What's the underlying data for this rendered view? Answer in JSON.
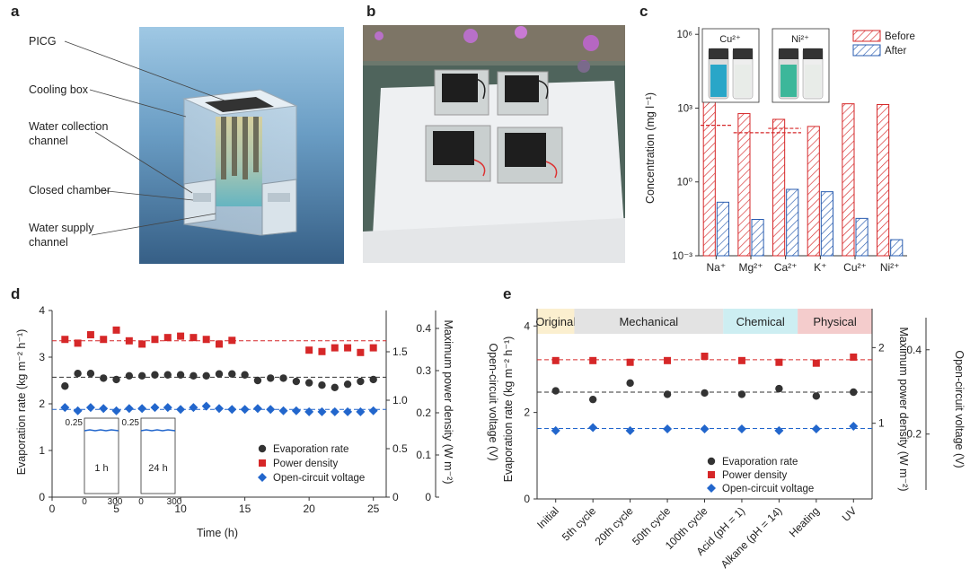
{
  "panel_labels": {
    "a": "a",
    "b": "b",
    "c": "c",
    "d": "d",
    "e": "e"
  },
  "panel_a": {
    "labels": [
      "PICG",
      "Cooling box",
      "Water collection channel",
      "Closed chamber",
      "Water supply channel"
    ],
    "label_lines": [
      [
        "PICG"
      ],
      [
        "Cooling box"
      ],
      [
        "Water collection",
        "channel"
      ],
      [
        "Closed chamber"
      ],
      [
        "Water supply",
        "channel"
      ]
    ]
  },
  "panel_b": {
    "description_icon": "photo-of-four-devices-on-foam"
  },
  "chart_data": [
    {
      "id": "c",
      "type": "bar",
      "scale": "log",
      "categories": [
        "Na⁺",
        "Mg²⁺",
        "Ca²⁺",
        "K⁺",
        "Cu²⁺",
        "Ni²⁺"
      ],
      "series": [
        {
          "name": "Before",
          "values": [
            3000,
            600,
            350,
            180,
            1500,
            1400
          ],
          "color": "#d62728"
        },
        {
          "name": "After",
          "values": [
            0.15,
            0.03,
            0.5,
            0.4,
            0.033,
            0.0045
          ],
          "color": "#2a5db0"
        }
      ],
      "limits": [
        {
          "value": 200,
          "from": 0,
          "to": 0
        },
        {
          "value": 100,
          "from": 1,
          "to": 2
        },
        {
          "value": 150,
          "from": 2,
          "to": 2
        }
      ],
      "ylabel": "Concentration (mg l⁻¹)",
      "yticks": [
        {
          "exp": -3,
          "label": "10⁻³"
        },
        {
          "exp": 0,
          "label": "10⁰"
        },
        {
          "exp": 3,
          "label": "10³"
        },
        {
          "exp": 6,
          "label": "10⁶"
        }
      ],
      "ylim_exp": [
        -3,
        6.3
      ],
      "legend": [
        "Before",
        "After"
      ],
      "insets": [
        {
          "label": "Cu²⁺",
          "color": "#29a6c8"
        },
        {
          "label": "Ni²⁺",
          "color": "#3cb79a"
        }
      ]
    },
    {
      "id": "d",
      "type": "scatter",
      "xlabel": "Time (h)",
      "ylabel": "Evaporation rate (kg m⁻² h⁻¹)",
      "ylabel2": "Maximum power density (W m⁻²)",
      "ylabel3": "Open-circuit voltage (V)",
      "xlim": [
        0,
        26
      ],
      "ylim": [
        0,
        4
      ],
      "xticks": [
        0,
        5,
        10,
        15,
        20,
        25
      ],
      "yticks": [
        0,
        1,
        2,
        3,
        4
      ],
      "y2ticks": [
        "0",
        "0.5",
        "1.0",
        "1.5"
      ],
      "y3ticks": [
        "0",
        "0.1",
        "0.2",
        "0.3",
        "0.4"
      ],
      "series": [
        {
          "name": "Evaporation rate",
          "color": "#333333",
          "marker": "circle",
          "x": [
            1,
            2,
            3,
            4,
            5,
            6,
            7,
            8,
            9,
            10,
            11,
            12,
            13,
            14,
            15,
            16,
            17,
            18,
            19,
            20,
            21,
            22,
            23,
            24,
            25
          ],
          "y": [
            2.38,
            2.65,
            2.65,
            2.55,
            2.52,
            2.6,
            2.6,
            2.62,
            2.62,
            2.62,
            2.6,
            2.6,
            2.64,
            2.64,
            2.62,
            2.5,
            2.55,
            2.55,
            2.48,
            2.45,
            2.4,
            2.35,
            2.42,
            2.48,
            2.52
          ]
        },
        {
          "name": "Power density",
          "color": "#d62728",
          "marker": "square",
          "x": [
            1,
            2,
            3,
            4,
            5,
            6,
            7,
            8,
            9,
            10,
            11,
            12,
            13,
            14,
            20,
            21,
            22,
            23,
            24,
            25
          ],
          "y": [
            3.38,
            3.3,
            3.48,
            3.38,
            3.58,
            3.35,
            3.28,
            3.38,
            3.42,
            3.45,
            3.42,
            3.38,
            3.28,
            3.36,
            3.15,
            3.12,
            3.2,
            3.2,
            3.1,
            3.2
          ]
        },
        {
          "name": "Open-circuit voltage",
          "color": "#2266cc",
          "marker": "diamond",
          "x": [
            1,
            2,
            3,
            4,
            5,
            6,
            7,
            8,
            9,
            10,
            11,
            12,
            13,
            14,
            15,
            16,
            17,
            18,
            19,
            20,
            21,
            22,
            23,
            24,
            25
          ],
          "y": [
            1.92,
            1.85,
            1.92,
            1.9,
            1.85,
            1.9,
            1.9,
            1.92,
            1.92,
            1.88,
            1.92,
            1.95,
            1.9,
            1.88,
            1.88,
            1.9,
            1.88,
            1.85,
            1.85,
            1.83,
            1.83,
            1.83,
            1.83,
            1.83,
            1.85
          ]
        }
      ],
      "reference_lines": [
        {
          "color": "#d62728",
          "y": 3.35
        },
        {
          "color": "#333333",
          "y": 2.57
        },
        {
          "color": "#2266cc",
          "y": 1.88
        }
      ],
      "insets": [
        {
          "label": "1 h",
          "ytick": "0.25",
          "xticks": [
            "0",
            "300"
          ]
        },
        {
          "label": "24 h",
          "ytick": "0.25",
          "xticks": [
            "0",
            "300"
          ]
        }
      ],
      "legend": [
        "Evaporation rate",
        "Power density",
        "Open-circuit voltage"
      ]
    },
    {
      "id": "e",
      "type": "scatter",
      "ylabel": "Evaporation rate (kg m⁻² h⁻¹)",
      "ylabel2": "Maximum power density (W m⁻²)",
      "ylabel3": "Open-circuit voltage (V)",
      "categories": [
        "Initial",
        "5th cycle",
        "20th cycle",
        "50th cycle",
        "100th cycle",
        "Acid (pH = 1)",
        "Alkane (pH = 14)",
        "Heating",
        "UV"
      ],
      "ylim": [
        0,
        4.4
      ],
      "yticks": [
        0,
        2,
        4
      ],
      "y2ticks": [
        "1",
        "2"
      ],
      "y3ticks": [
        "0.2",
        "0.4"
      ],
      "groups": [
        {
          "name": "Original",
          "from": 0,
          "to": 0,
          "color": "#fbefcf"
        },
        {
          "name": "Mechanical",
          "from": 1,
          "to": 4,
          "color": "#e3e3e3"
        },
        {
          "name": "Chemical",
          "from": 5,
          "to": 6,
          "color": "#cdeef2"
        },
        {
          "name": "Physical",
          "from": 7,
          "to": 8,
          "color": "#f4cccc"
        }
      ],
      "series": [
        {
          "name": "Evaporation rate",
          "color": "#333333",
          "marker": "circle",
          "y": [
            2.5,
            2.3,
            2.68,
            2.42,
            2.45,
            2.42,
            2.55,
            2.38,
            2.47
          ]
        },
        {
          "name": "Power density",
          "color": "#d62728",
          "marker": "square",
          "y": [
            3.2,
            3.2,
            3.16,
            3.2,
            3.3,
            3.2,
            3.16,
            3.14,
            3.28
          ]
        },
        {
          "name": "Open-circuit voltage",
          "color": "#2266cc",
          "marker": "diamond",
          "y": [
            1.58,
            1.65,
            1.58,
            1.62,
            1.62,
            1.62,
            1.58,
            1.62,
            1.68
          ]
        }
      ],
      "reference_lines": [
        {
          "color": "#d62728",
          "y": 3.22
        },
        {
          "color": "#333333",
          "y": 2.47
        },
        {
          "color": "#2266cc",
          "y": 1.63
        }
      ],
      "legend": [
        "Evaporation rate",
        "Power density",
        "Open-circuit voltage"
      ]
    }
  ]
}
